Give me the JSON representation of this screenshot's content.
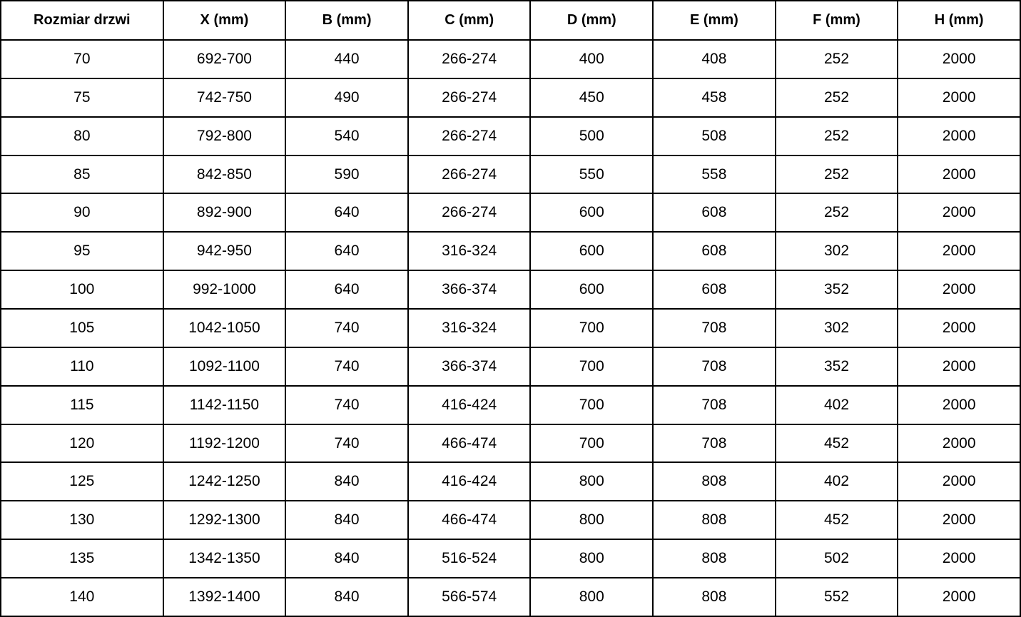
{
  "table": {
    "name": "door-dimensions-table",
    "columns": [
      "Rozmiar drzwi",
      "X (mm)",
      "B (mm)",
      "C (mm)",
      "D (mm)",
      "E (mm)",
      "F (mm)",
      "H (mm)"
    ],
    "rows": [
      [
        "70",
        "692-700",
        "440",
        "266-274",
        "400",
        "408",
        "252",
        "2000"
      ],
      [
        "75",
        "742-750",
        "490",
        "266-274",
        "450",
        "458",
        "252",
        "2000"
      ],
      [
        "80",
        "792-800",
        "540",
        "266-274",
        "500",
        "508",
        "252",
        "2000"
      ],
      [
        "85",
        "842-850",
        "590",
        "266-274",
        "550",
        "558",
        "252",
        "2000"
      ],
      [
        "90",
        "892-900",
        "640",
        "266-274",
        "600",
        "608",
        "252",
        "2000"
      ],
      [
        "95",
        "942-950",
        "640",
        "316-324",
        "600",
        "608",
        "302",
        "2000"
      ],
      [
        "100",
        "992-1000",
        "640",
        "366-374",
        "600",
        "608",
        "352",
        "2000"
      ],
      [
        "105",
        "1042-1050",
        "740",
        "316-324",
        "700",
        "708",
        "302",
        "2000"
      ],
      [
        "110",
        "1092-1100",
        "740",
        "366-374",
        "700",
        "708",
        "352",
        "2000"
      ],
      [
        "115",
        "1142-1150",
        "740",
        "416-424",
        "700",
        "708",
        "402",
        "2000"
      ],
      [
        "120",
        "1192-1200",
        "740",
        "466-474",
        "700",
        "708",
        "452",
        "2000"
      ],
      [
        "125",
        "1242-1250",
        "840",
        "416-424",
        "800",
        "808",
        "402",
        "2000"
      ],
      [
        "130",
        "1292-1300",
        "840",
        "466-474",
        "800",
        "808",
        "452",
        "2000"
      ],
      [
        "135",
        "1342-1350",
        "840",
        "516-524",
        "800",
        "808",
        "502",
        "2000"
      ],
      [
        "140",
        "1392-1400",
        "840",
        "566-574",
        "800",
        "808",
        "552",
        "2000"
      ]
    ],
    "colors": {
      "border": "#000000",
      "background": "#ffffff",
      "text": "#000000"
    }
  }
}
